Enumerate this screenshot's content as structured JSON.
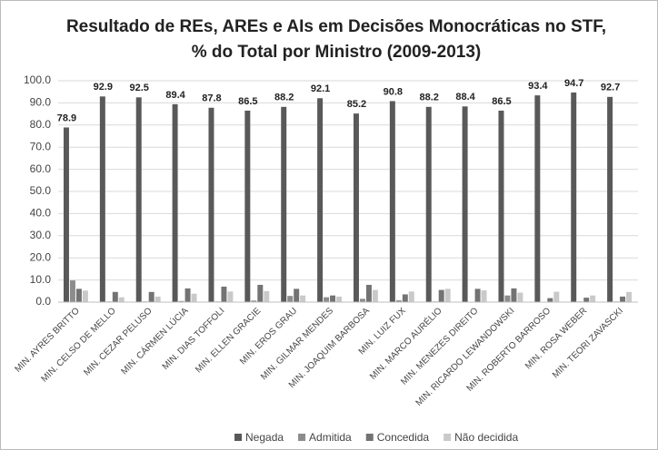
{
  "chart_data": {
    "type": "bar",
    "title": [
      "Resultado de REs, AREs e AIs em Decisões Monocráticas no STF,",
      "% do Total por Ministro (2009-2013)"
    ],
    "categories": [
      "MIN. AYRES BRITTO",
      "MIN. CELSO DE MELLO",
      "MIN. CEZAR PELUSO",
      "MIN. CÁRMEN LÚCIA",
      "MIN. DIAS TOFFOLI",
      "MIN. ELLEN GRACIE",
      "MIN. EROS GRAU",
      "MIN. GILMAR MENDES",
      "MIN. JOAQUIM BARBOSA",
      "MIN. LUIZ FUX",
      "MIN. MARCO AURÉLIO",
      "MIN. MENEZES DIREITO",
      "MIN. RICARDO LEWANDOWSKI",
      "MIN. ROBERTO BARROSO",
      "MIN. ROSA WEBER",
      "MIN. TEORI ZAVASCKI"
    ],
    "series": [
      {
        "name": "Negada",
        "color": "#595959",
        "labeled": true,
        "values": [
          78.9,
          92.9,
          92.5,
          89.4,
          87.8,
          86.5,
          88.2,
          92.1,
          85.2,
          90.8,
          88.2,
          88.4,
          86.5,
          93.4,
          94.7,
          92.7
        ]
      },
      {
        "name": "Admitida",
        "color": "#8c8c8c",
        "values": [
          9.8,
          0.3,
          0.3,
          0.5,
          0.3,
          0.7,
          2.8,
          2.2,
          1.5,
          0.8,
          0.3,
          0.2,
          3.0,
          0.1,
          0.3,
          0.3
        ]
      },
      {
        "name": "Concedida",
        "color": "#737373",
        "values": [
          6.0,
          4.6,
          4.6,
          6.2,
          7.0,
          7.8,
          6.0,
          3.0,
          7.8,
          3.5,
          5.5,
          6.0,
          6.2,
          1.8,
          2.0,
          2.5
        ]
      },
      {
        "name": "Não decidida",
        "color": "#c9c9c9",
        "values": [
          5.2,
          2.2,
          2.5,
          3.8,
          4.8,
          5.0,
          3.0,
          2.5,
          5.5,
          4.8,
          6.0,
          5.3,
          4.3,
          4.7,
          3.0,
          4.6
        ]
      }
    ],
    "ylim": [
      0,
      100
    ],
    "yticks": [
      {
        "value": 0,
        "label": "0.0"
      },
      {
        "value": 10,
        "label": "10.0"
      },
      {
        "value": 20,
        "label": "20.0"
      },
      {
        "value": 30,
        "label": "30.0"
      },
      {
        "value": 40,
        "label": "40.0"
      },
      {
        "value": 50,
        "label": "50.0"
      },
      {
        "value": 60,
        "label": "60.0"
      },
      {
        "value": 70,
        "label": "70.0"
      },
      {
        "value": 80,
        "label": "80.0"
      },
      {
        "value": 90,
        "label": "90.0"
      },
      {
        "value": 100,
        "label": "100.0"
      }
    ],
    "grid": true,
    "legend": "bottom"
  }
}
